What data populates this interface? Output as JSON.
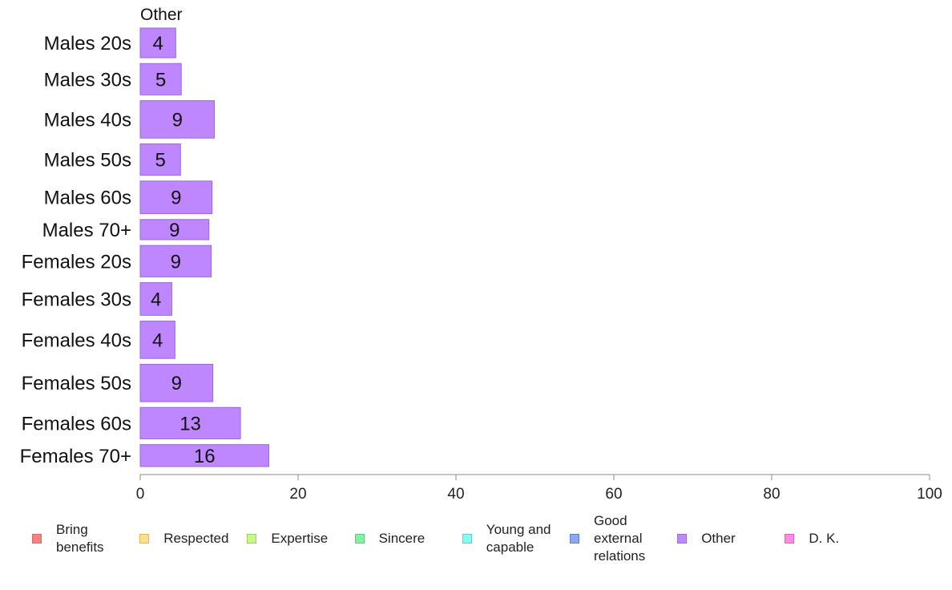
{
  "chart_data": {
    "type": "bar",
    "orientation": "horizontal",
    "title": "Other",
    "categories": [
      "Males 20s",
      "Males 30s",
      "Males 40s",
      "Males 50s",
      "Males 60s",
      "Males 70+",
      "Females 20s",
      "Females 30s",
      "Females 40s",
      "Females 50s",
      "Females 60s",
      "Females 70+"
    ],
    "series": [
      {
        "name": "Other",
        "color": "#bf87ff",
        "border": "#9a6ad6",
        "values": [
          4.5,
          5.2,
          9.4,
          5.1,
          9.1,
          8.7,
          9.0,
          4.0,
          4.4,
          9.2,
          12.7,
          16.3
        ],
        "labels": [
          "4",
          "5",
          "9",
          "5",
          "9",
          "9",
          "9",
          "4",
          "4",
          "9",
          "13",
          "16"
        ]
      }
    ],
    "bar_weights": [
      0.69,
      0.73,
      0.87,
      0.73,
      0.76,
      0.47,
      0.73,
      0.76,
      0.87,
      0.87,
      0.73,
      0.51
    ],
    "xlim": [
      0,
      100
    ],
    "xticks": [
      0,
      20,
      40,
      60,
      80,
      100
    ],
    "xlabel": "",
    "ylabel": "",
    "grid": false,
    "legend_position": "bottom",
    "legend": [
      {
        "label": "Bring\nbenefits",
        "color": "#f4857c",
        "border": "#d86a62"
      },
      {
        "label": "Respected",
        "color": "#ffe08a",
        "border": "#d9b95a"
      },
      {
        "label": "Expertise",
        "color": "#c8f78a",
        "border": "#9fd060"
      },
      {
        "label": "Sincere",
        "color": "#86f0a2",
        "border": "#5ecb7c"
      },
      {
        "label": "Young and\ncapable",
        "color": "#8cf7f4",
        "border": "#5fd0cd"
      },
      {
        "label": "Good\nexternal\nrelations",
        "color": "#8aa9f0",
        "border": "#5f7fd0"
      },
      {
        "label": "Other",
        "color": "#bf87ff",
        "border": "#9a6ad6"
      },
      {
        "label": "D. K.",
        "color": "#ff8ae3",
        "border": "#d963bd"
      }
    ]
  }
}
